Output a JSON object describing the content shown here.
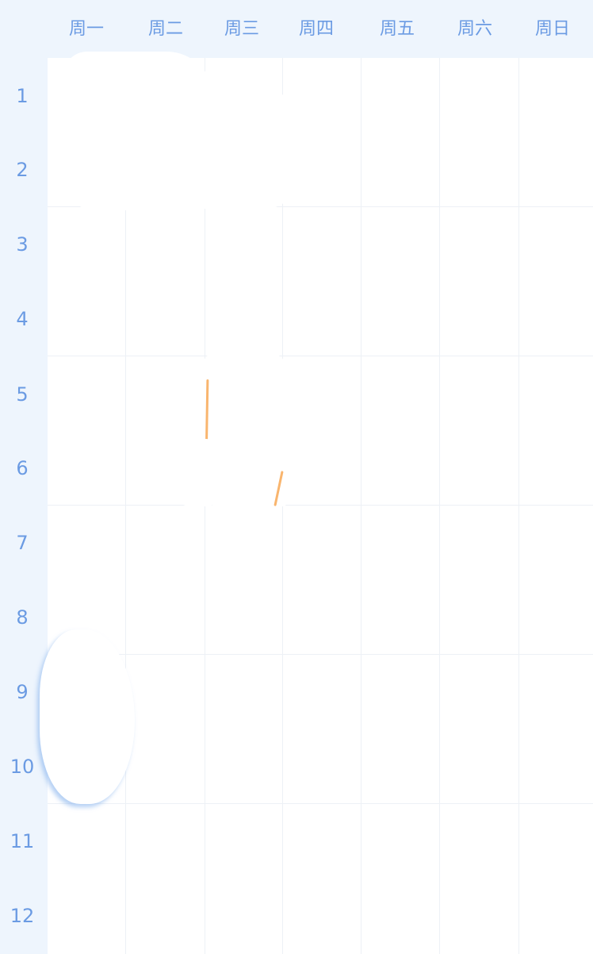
{
  "days": [
    "周一",
    "周二",
    "周三",
    "周四",
    "周五",
    "周六",
    "周日"
  ],
  "periods": [
    "1",
    "2",
    "3",
    "4",
    "5",
    "6",
    "7",
    "8",
    "9",
    "10",
    "11",
    "12"
  ],
  "colors": {
    "header_bg": "#eef5fd",
    "label_text": "#6b9be3",
    "grid_line": "#edf1f6"
  }
}
